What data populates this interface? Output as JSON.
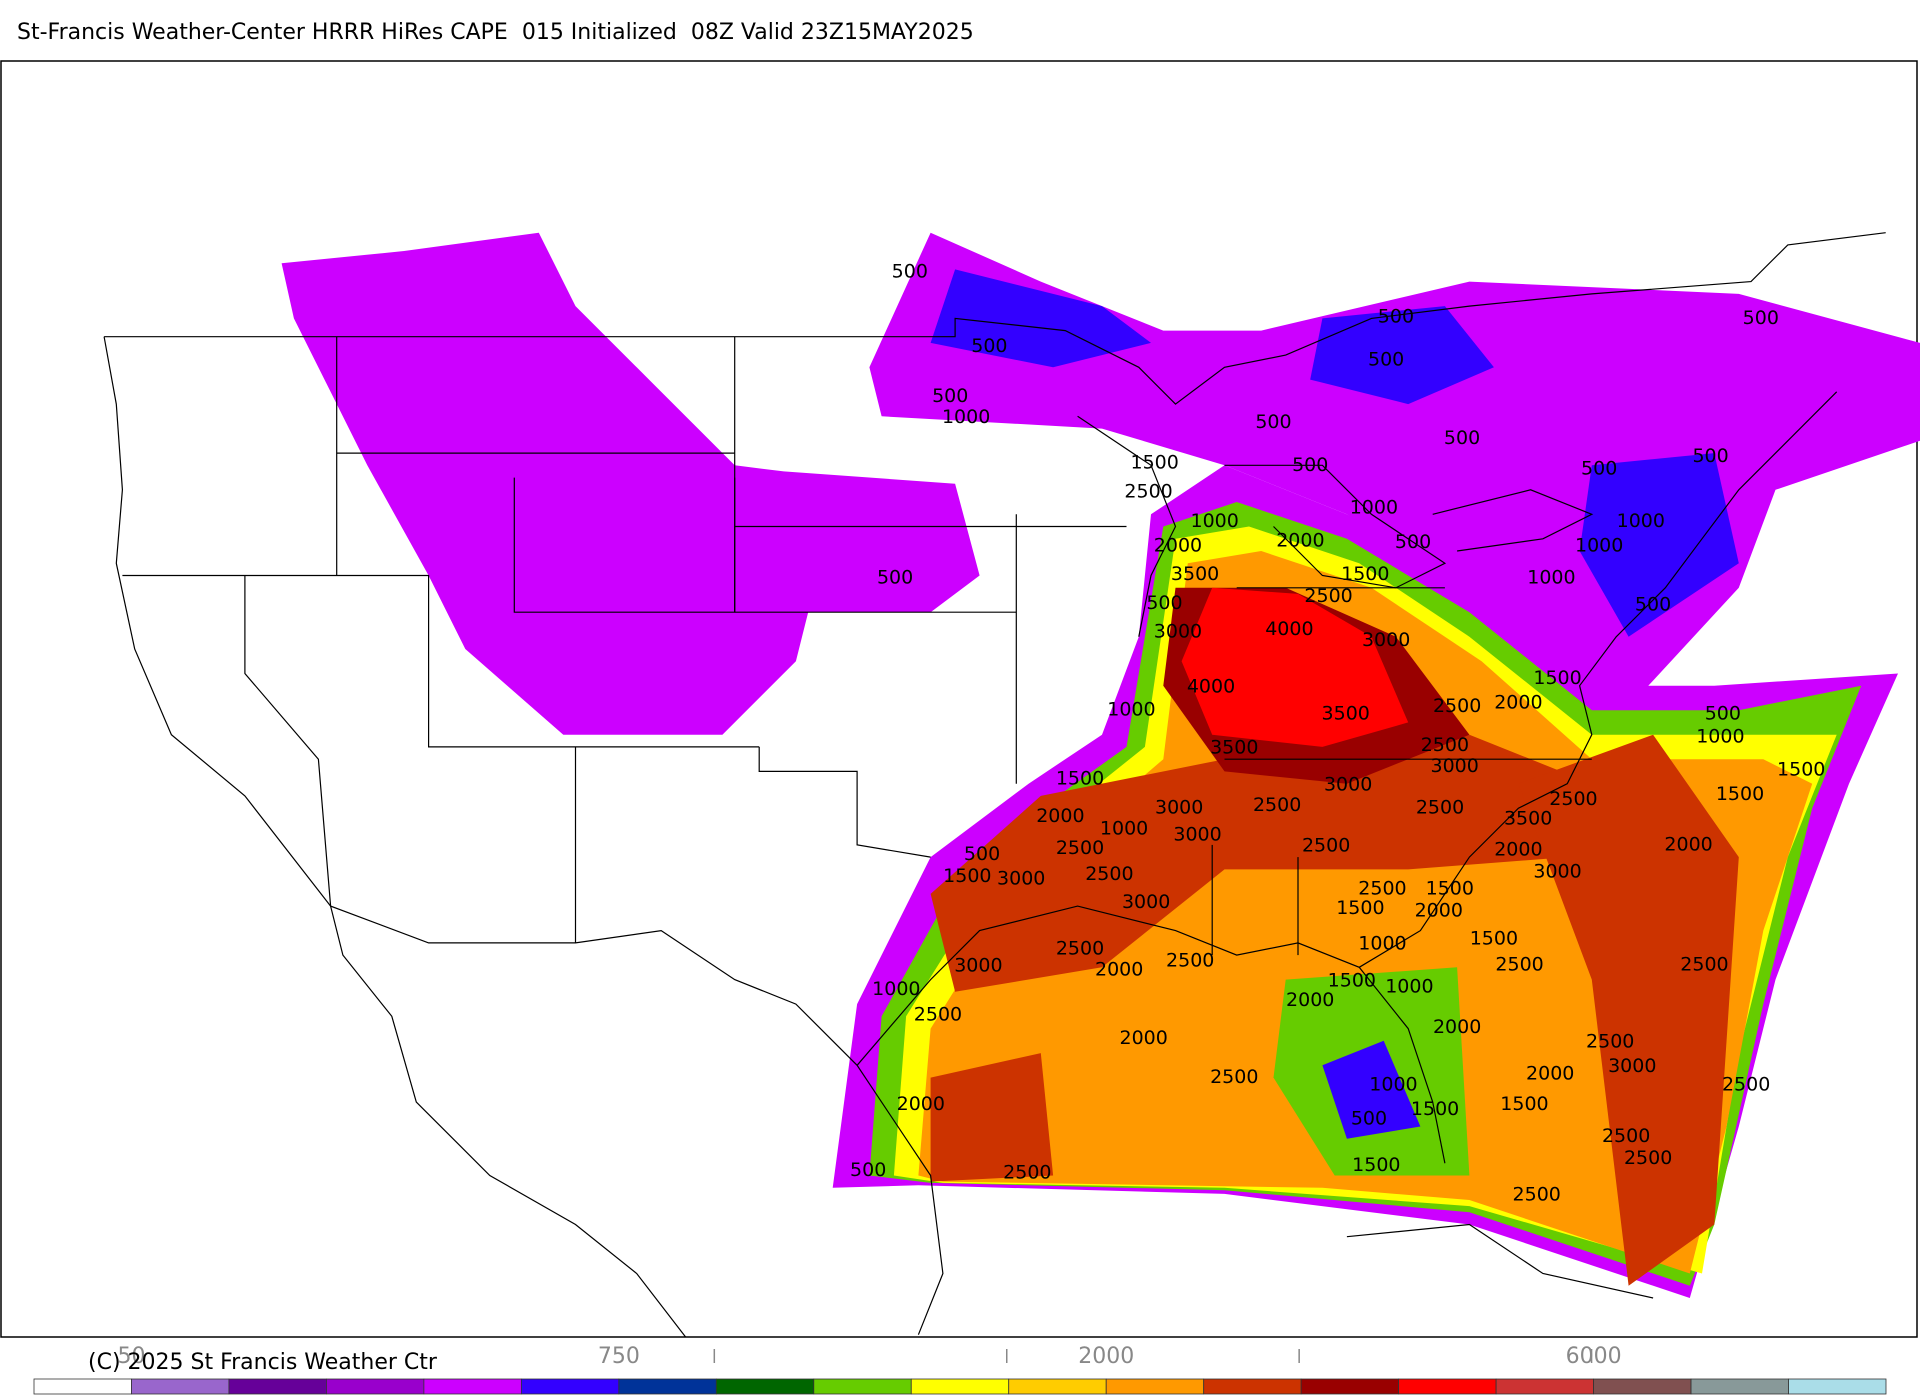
{
  "header": {
    "title": "St-Francis Weather-Center HRRR HiRes CAPE  015 Initialized  08Z Valid 23Z15MAY2025"
  },
  "map": {
    "contour_labels": [
      "500",
      "500",
      "500",
      "1000",
      "500",
      "500",
      "500",
      "500",
      "500",
      "500",
      "1500",
      "500",
      "500",
      "2500",
      "1000",
      "1000",
      "2000",
      "500",
      "2000",
      "1000",
      "1000",
      "1000",
      "3500",
      "1500",
      "2500",
      "500",
      "500",
      "4000",
      "3000",
      "3000",
      "500",
      "1500",
      "4000",
      "2000",
      "2500",
      "1000",
      "3500",
      "500",
      "1000",
      "2500",
      "3500",
      "3000",
      "1500",
      "1500",
      "3000",
      "2000",
      "3000",
      "2500",
      "2500",
      "2500",
      "3500",
      "1500",
      "1000",
      "3000",
      "2000",
      "500",
      "2500",
      "2500",
      "2000",
      "1500",
      "3000",
      "2500",
      "3000",
      "2500",
      "1500",
      "3000",
      "1500",
      "2000",
      "1500",
      "1000",
      "2500",
      "2500",
      "3000",
      "2000",
      "2500",
      "2500",
      "1500",
      "1000",
      "1000",
      "2000",
      "2500",
      "2000",
      "2000",
      "2500",
      "3000",
      "2000",
      "2500",
      "1000",
      "2500",
      "2000",
      "1500",
      "1500",
      "500",
      "2500",
      "2500",
      "1500",
      "2500",
      "500",
      "2500"
    ]
  },
  "colorbar": {
    "colors": [
      "#ffffff",
      "#9966cc",
      "#660099",
      "#9900cc",
      "#cc00ff",
      "#3300ff",
      "#003399",
      "#006600",
      "#66cc00",
      "#ffff00",
      "#ffcc00",
      "#ff9900",
      "#cc3300",
      "#990000",
      "#ff0000",
      "#cc3333",
      "#805050",
      "#889999",
      "#aadde8"
    ],
    "labels": [
      "50",
      "750",
      "2000",
      "6000"
    ]
  },
  "footer": {
    "copyright": "(C) 2025 St Francis Weather Ctr"
  }
}
